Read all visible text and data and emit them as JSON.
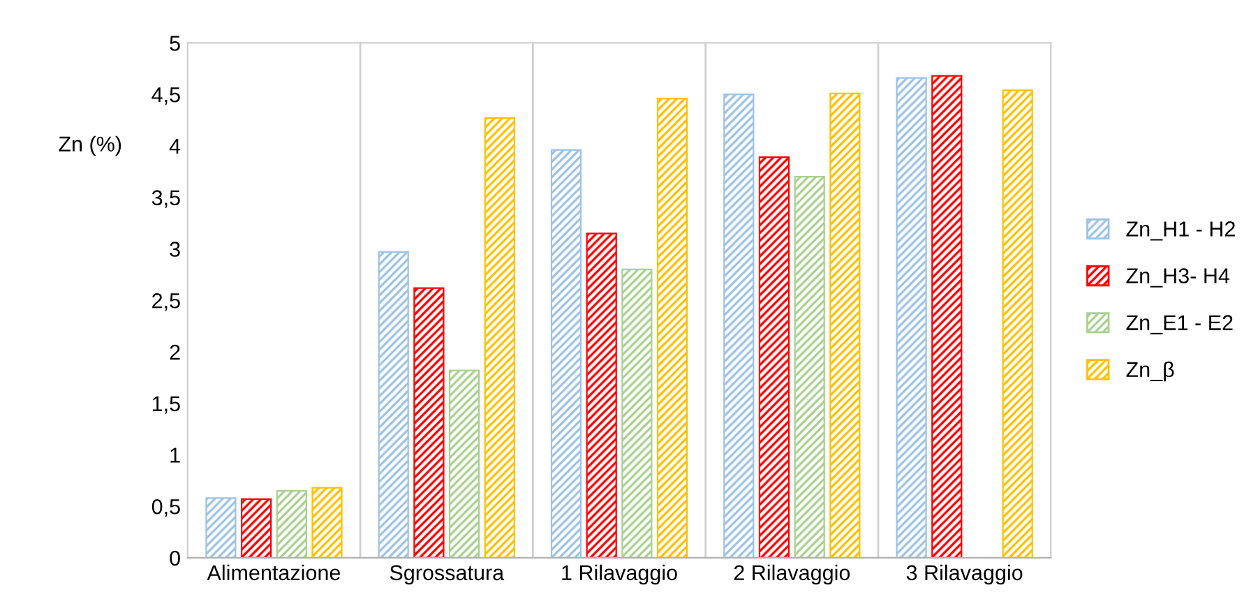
{
  "chart_data": {
    "type": "bar",
    "ylabel": "Zn (%)",
    "categories": [
      "Alimentazione",
      "Sgrossatura",
      "1 Rilavaggio",
      "2 Rilavaggio",
      "3 Rilavaggio"
    ],
    "series": [
      {
        "name": "Zn_H1 - H2",
        "color": "#9dc3e6",
        "values": [
          0.58,
          2.97,
          3.96,
          4.5,
          4.66
        ]
      },
      {
        "name": "Zn_H3- H4",
        "color": "#ff0000",
        "values": [
          0.57,
          2.62,
          3.15,
          3.89,
          4.68
        ]
      },
      {
        "name": "Zn_E1 - E2",
        "color": "#a9d18e",
        "values": [
          0.65,
          1.82,
          2.8,
          3.7,
          null
        ]
      },
      {
        "name": "Zn_β",
        "color": "#ffc000",
        "values": [
          0.68,
          4.27,
          4.46,
          4.51,
          4.54
        ]
      }
    ],
    "ylim": [
      0,
      5
    ],
    "yticks": [
      0,
      {
        "value": 0.5,
        "label": "0,5"
      },
      1,
      {
        "value": 1.5,
        "label": "1,5"
      },
      2,
      {
        "value": 2.5,
        "label": "2,5"
      },
      3,
      {
        "value": 3.5,
        "label": "3,5"
      },
      4,
      {
        "value": 4.5,
        "label": "4,5"
      },
      5
    ],
    "grid": "x",
    "legend": "right"
  }
}
